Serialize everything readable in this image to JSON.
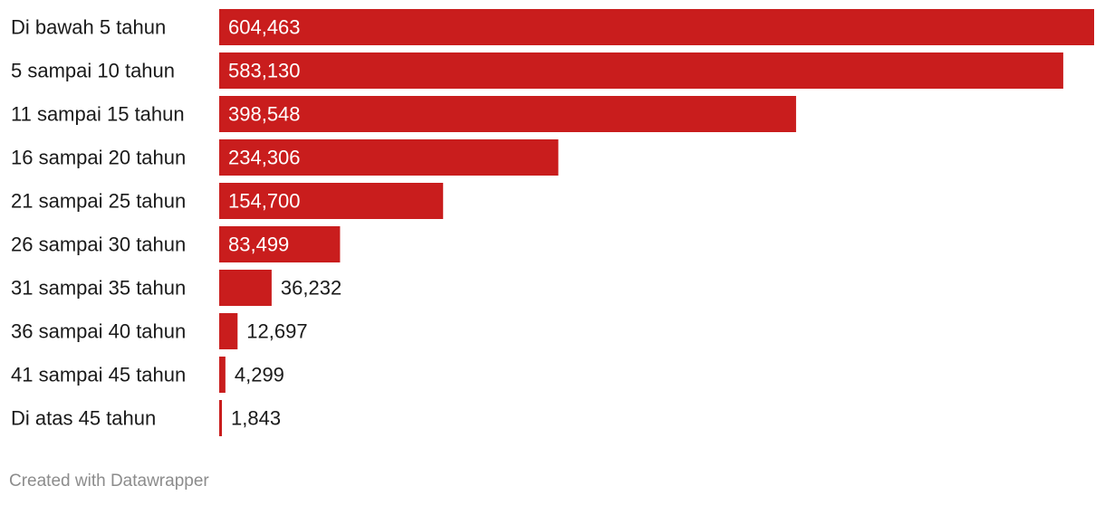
{
  "chart_data": {
    "type": "bar",
    "orientation": "horizontal",
    "categories": [
      "Di bawah 5 tahun",
      "5 sampai 10 tahun",
      "11 sampai 15 tahun",
      "16 sampai 20 tahun",
      "21 sampai 25 tahun",
      "26 sampai 30 tahun",
      "31 sampai 35 tahun",
      "36 sampai 40 tahun",
      "41 sampai 45 tahun",
      "Di atas 45 tahun"
    ],
    "values": [
      604463,
      583130,
      398548,
      234306,
      154700,
      83499,
      36232,
      12697,
      4299,
      1843
    ],
    "value_labels": [
      "604,463",
      "583,130",
      "398,548",
      "234,306",
      "154,700",
      "83,499",
      "36,232",
      "12,697",
      "4,299",
      "1,843"
    ],
    "xlim": [
      0,
      604463
    ],
    "grid": false,
    "legend": "none",
    "bar_color": "#c91d1d",
    "label_inside_color": "#ffffff",
    "label_outside_color": "#1a1a1a"
  },
  "footer": {
    "credit": "Created with Datawrapper"
  }
}
